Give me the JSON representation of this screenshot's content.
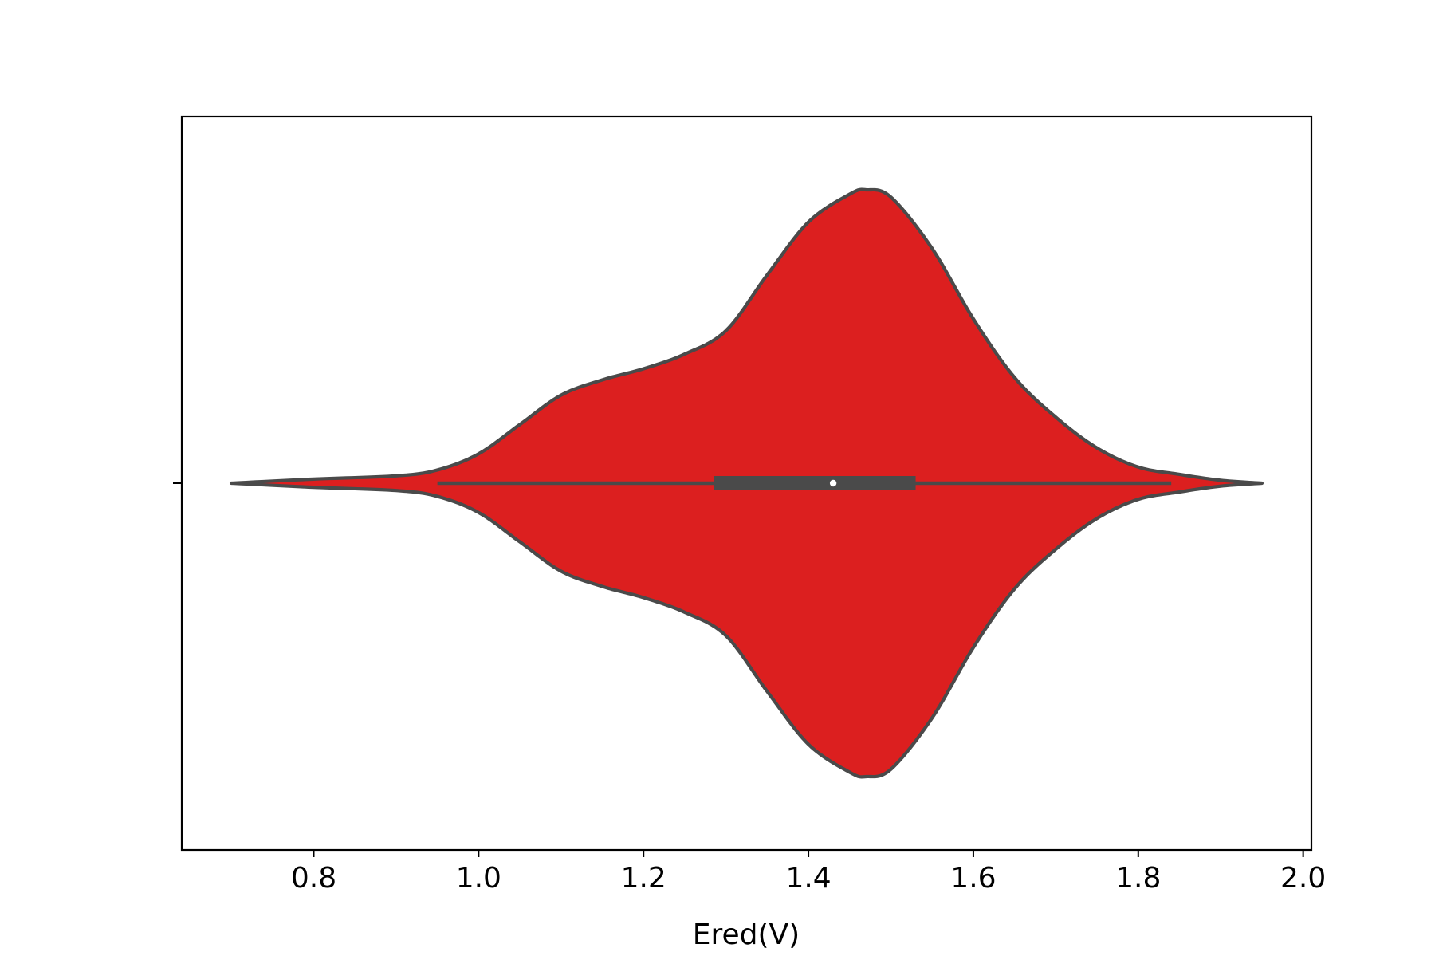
{
  "chart_data": {
    "type": "violin",
    "title": "",
    "xlabel": "Ered(V)",
    "ylabel": "",
    "xlim": [
      0.64,
      2.01
    ],
    "x_ticks": [
      0.8,
      1.0,
      1.2,
      1.4,
      1.6,
      1.8,
      2.0
    ],
    "x_tick_labels": [
      "0.8",
      "1.0",
      "1.2",
      "1.4",
      "1.6",
      "1.8",
      "2.0"
    ],
    "grid": false,
    "legend": "none",
    "fill_color": "#dc1f1f",
    "line_color": "#4a4a4a",
    "density_profile": {
      "x": [
        0.7,
        0.8,
        0.9,
        0.95,
        1.0,
        1.05,
        1.1,
        1.15,
        1.2,
        1.25,
        1.3,
        1.35,
        1.4,
        1.45,
        1.47,
        1.5,
        1.55,
        1.6,
        1.65,
        1.7,
        1.75,
        1.8,
        1.85,
        1.9,
        1.95
      ],
      "half_width_rel": [
        0.0,
        0.014,
        0.025,
        0.045,
        0.1,
        0.2,
        0.3,
        0.352,
        0.39,
        0.44,
        0.52,
        0.71,
        0.89,
        0.985,
        1.0,
        0.975,
        0.8,
        0.56,
        0.36,
        0.225,
        0.12,
        0.055,
        0.03,
        0.01,
        0.0
      ]
    },
    "box": {
      "whisker_low": 0.95,
      "q1": 1.285,
      "median": 1.43,
      "q3": 1.53,
      "whisker_high": 1.84
    }
  }
}
